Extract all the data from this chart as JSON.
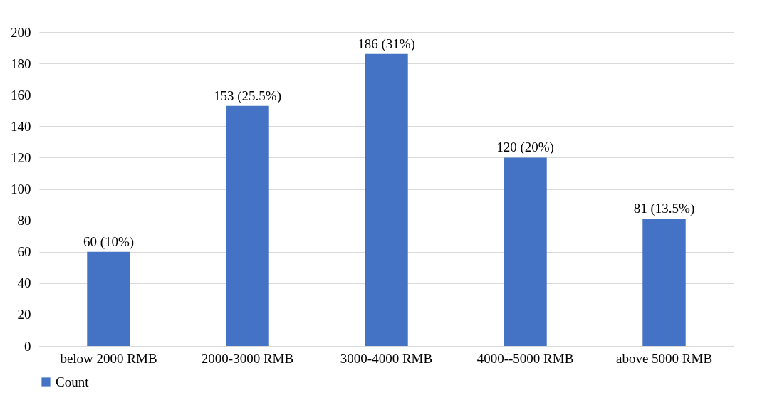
{
  "chart_data": {
    "type": "bar",
    "categories": [
      "below 2000 RMB",
      "2000-3000 RMB",
      "3000-4000 RMB",
      "4000--5000 RMB",
      "above 5000 RMB"
    ],
    "series": [
      {
        "name": "Count",
        "color": "#4472c4",
        "values": [
          60,
          153,
          186,
          120,
          81
        ],
        "value_labels": [
          "60 (10%)",
          "153 (25.5%)",
          "186 (31%)",
          "120 (20%)",
          "81 (13.5%)"
        ]
      }
    ],
    "ylim": [
      0,
      200
    ],
    "yticks": [
      0,
      20,
      40,
      60,
      80,
      100,
      120,
      140,
      160,
      180,
      200
    ],
    "grid": "y",
    "legend": "bottom"
  }
}
